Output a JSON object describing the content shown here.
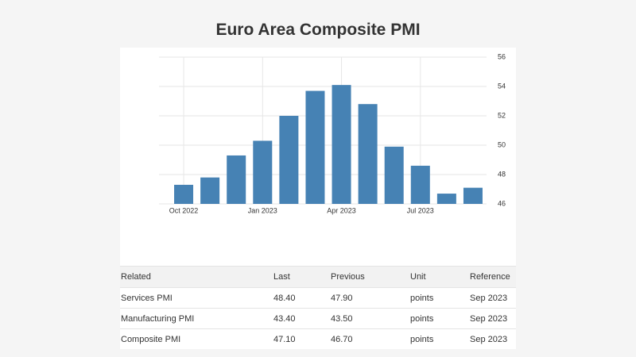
{
  "chart_data": {
    "type": "bar",
    "title": "Euro Area Composite PMI",
    "categories": [
      "Oct 2022",
      null,
      null,
      "Jan 2023",
      null,
      null,
      "Apr 2023",
      null,
      null,
      "Jul 2023",
      null,
      null
    ],
    "values": [
      47.3,
      47.8,
      49.3,
      50.3,
      52.0,
      53.7,
      54.1,
      52.8,
      49.9,
      48.6,
      46.7,
      47.1
    ],
    "color": "#4682b4",
    "ylim": [
      46,
      56
    ],
    "yticks": [
      46,
      48,
      50,
      52,
      54,
      56
    ],
    "grid": true,
    "y_axis_side": "right"
  },
  "table": {
    "header": [
      "Related",
      "Last",
      "Previous",
      "Unit",
      "Reference"
    ],
    "rows": [
      [
        "Services PMI",
        "48.40",
        "47.90",
        "points",
        "Sep 2023"
      ],
      [
        "Manufacturing PMI",
        "43.40",
        "43.50",
        "points",
        "Sep 2023"
      ],
      [
        "Composite PMI",
        "47.10",
        "46.70",
        "points",
        "Sep 2023"
      ]
    ]
  }
}
